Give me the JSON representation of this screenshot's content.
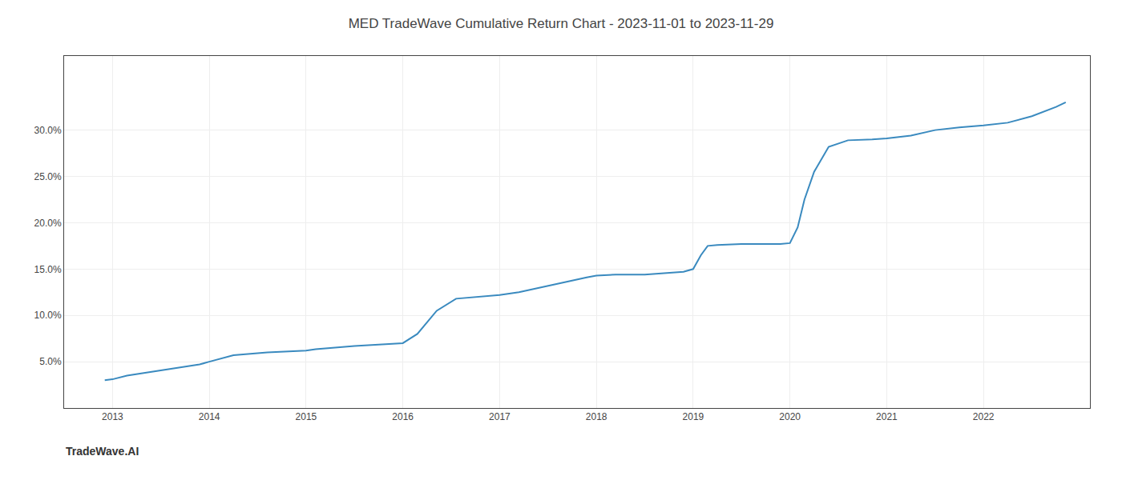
{
  "chart_data": {
    "type": "line",
    "title": "MED TradeWave Cumulative Return Chart - 2023-11-01 to 2023-11-29",
    "annotations": [
      "TradeWave.AI"
    ],
    "x": [
      2012.92,
      2013.0,
      2013.15,
      2013.4,
      2013.7,
      2013.9,
      2014.0,
      2014.25,
      2014.6,
      2014.85,
      2015.0,
      2015.1,
      2015.25,
      2015.5,
      2015.75,
      2016.0,
      2016.15,
      2016.35,
      2016.55,
      2016.75,
      2016.9,
      2017.0,
      2017.2,
      2017.5,
      2017.75,
      2017.9,
      2018.0,
      2018.2,
      2018.5,
      2018.75,
      2018.9,
      2019.0,
      2019.08,
      2019.15,
      2019.25,
      2019.5,
      2019.75,
      2019.9,
      2020.0,
      2020.08,
      2020.15,
      2020.25,
      2020.4,
      2020.6,
      2020.85,
      2021.0,
      2021.25,
      2021.5,
      2021.75,
      2021.9,
      2022.0,
      2022.25,
      2022.5,
      2022.75,
      2022.85
    ],
    "values": [
      3.0,
      3.1,
      3.5,
      3.9,
      4.4,
      4.7,
      5.0,
      5.7,
      6.0,
      6.15,
      6.2,
      6.35,
      6.5,
      6.7,
      6.85,
      7.0,
      8.0,
      10.5,
      11.8,
      12.0,
      12.1,
      12.2,
      12.5,
      13.2,
      13.8,
      14.1,
      14.3,
      14.4,
      14.4,
      14.6,
      14.7,
      15.0,
      16.5,
      17.5,
      17.6,
      17.7,
      17.7,
      17.7,
      17.8,
      19.5,
      22.5,
      25.5,
      28.2,
      28.9,
      29.0,
      29.1,
      29.4,
      30.0,
      30.3,
      30.4,
      30.5,
      30.8,
      31.5,
      32.5,
      33.0
    ],
    "color": "#3a8abf",
    "xlim": [
      2012.5,
      2023.1
    ],
    "xticks": [
      2013,
      2014,
      2015,
      2016,
      2017,
      2018,
      2019,
      2020,
      2021,
      2022
    ],
    "ylim": [
      0,
      38
    ],
    "yticks": [
      {
        "value": 5.0,
        "label": "5.0%"
      },
      {
        "value": 10.0,
        "label": "10.0%"
      },
      {
        "value": 15.0,
        "label": "15.0%"
      },
      {
        "value": 20.0,
        "label": "20.0%"
      },
      {
        "value": 25.0,
        "label": "25.0%"
      },
      {
        "value": 30.0,
        "label": "30.0%"
      }
    ],
    "grid": true
  }
}
